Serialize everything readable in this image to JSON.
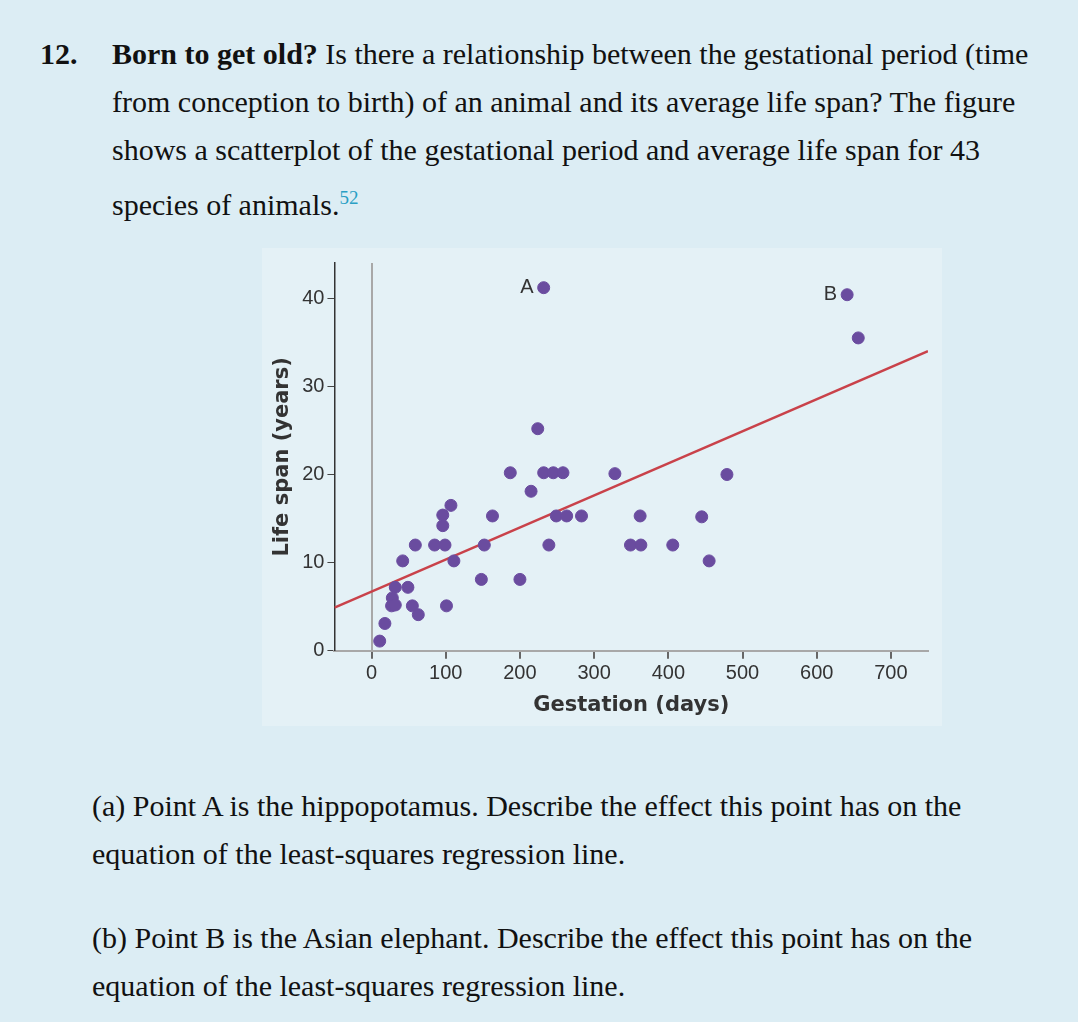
{
  "problem": {
    "number": "12.",
    "title": "Born to get old?",
    "intro": "Is there a relationship between the gestational period (time from conception to birth) of an animal and its average life span? The figure shows a scatterplot of the gestational period and average life span for 43 species of animals.",
    "footnote": "52",
    "parts": [
      {
        "label": "(a)",
        "text": "Point A is the hippopotamus. Describe the effect this point has on the equation of the least-squares regression line."
      },
      {
        "label": "(b)",
        "text": "Point B is the Asian elephant. Describe the effect this point has on the equation of the least-squares regression line."
      }
    ]
  },
  "chart_data": {
    "type": "scatter",
    "x_label": "Gestation (days)",
    "y_label": "Life span (years)",
    "xlim": [
      -50,
      750
    ],
    "xticks": [
      0,
      100,
      200,
      300,
      400,
      500,
      600,
      700
    ],
    "ylim": [
      0,
      44
    ],
    "yticks": [
      0,
      10,
      20,
      30,
      40
    ],
    "grid": false,
    "series": [
      {
        "type": "scatter",
        "color": "#6a4c9f",
        "marker": "circle",
        "x": [
          232,
          641,
          656,
          224,
          187,
          232,
          245,
          258,
          328,
          479,
          215,
          107,
          96,
          163,
          249,
          263,
          283,
          362,
          445,
          59,
          85,
          99,
          152,
          239,
          349,
          363,
          406,
          42,
          111,
          455,
          148,
          200,
          32,
          49,
          28,
          27,
          55,
          63,
          101,
          18,
          11,
          32,
          96
        ],
        "values": [
          41.2,
          40.4,
          35.5,
          25.2,
          20.2,
          20.2,
          20.2,
          20.2,
          20.1,
          20.0,
          18.1,
          16.5,
          15.4,
          15.3,
          15.3,
          15.3,
          15.3,
          15.3,
          15.2,
          12.0,
          12.0,
          12.0,
          12.0,
          12.0,
          12.0,
          12.0,
          12.0,
          10.2,
          10.2,
          10.2,
          8.1,
          8.1,
          7.2,
          7.2,
          6.0,
          5.1,
          5.1,
          4.1,
          5.1,
          3.1,
          1.1,
          5.2,
          14.2
        ],
        "point_labels": [
          "A",
          "B",
          null,
          null,
          null,
          null,
          null,
          null,
          null,
          null,
          null,
          null,
          null,
          null,
          null,
          null,
          null,
          null,
          null,
          null,
          null,
          null,
          null,
          null,
          null,
          null,
          null,
          null,
          null,
          null,
          null,
          null,
          null,
          null,
          null,
          null,
          null,
          null,
          null,
          null,
          null,
          null,
          null
        ]
      },
      {
        "type": "line",
        "color": "#c9424a",
        "line_style": "solid",
        "x": [
          -50,
          750
        ],
        "values": [
          4.9,
          34
        ]
      }
    ]
  }
}
